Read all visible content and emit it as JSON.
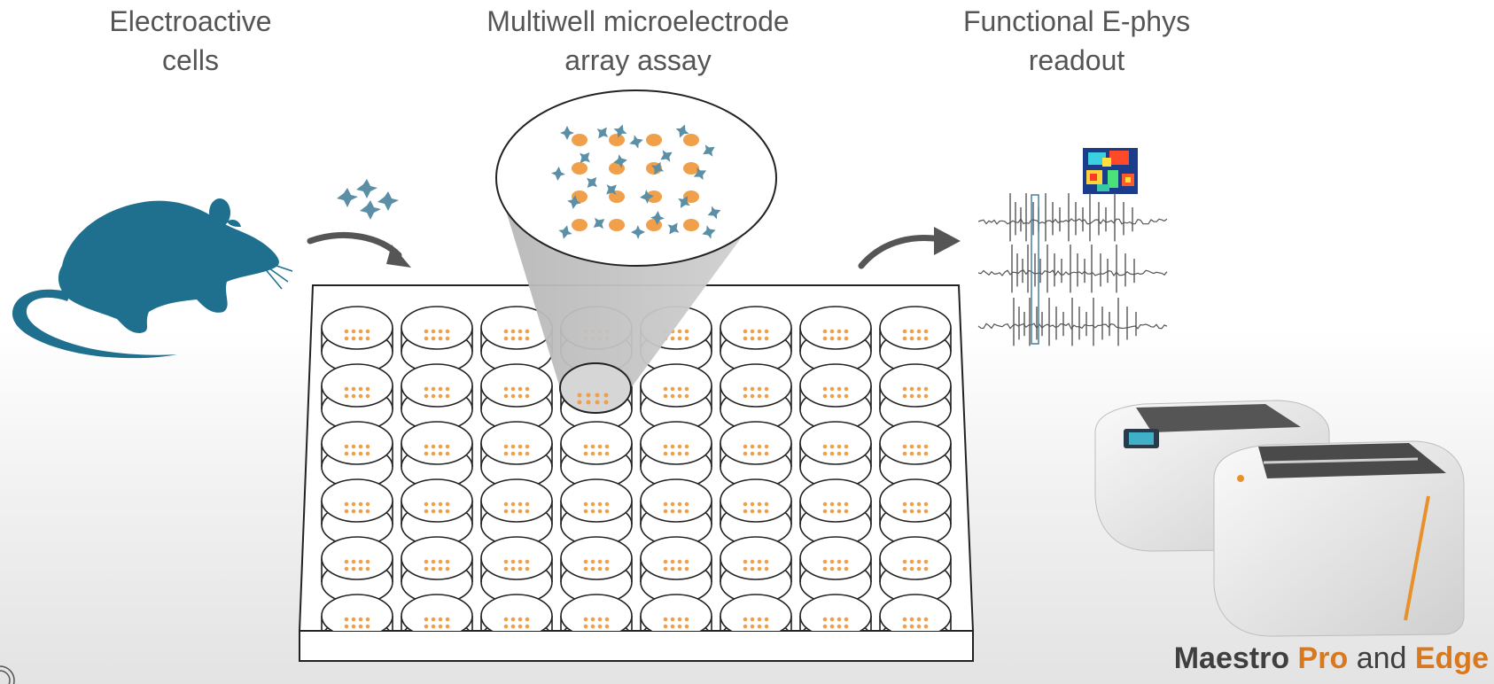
{
  "sections": {
    "cells_title": [
      "Electroactive",
      "cells"
    ],
    "assay_title": [
      "Multiwell microelectrode",
      "array assay"
    ],
    "readout_title": [
      "Functional E-phys",
      "readout"
    ]
  },
  "plate": {
    "rows": 6,
    "columns": 8,
    "highlighted_well": "row 2, column 4"
  },
  "brand": {
    "product": "Maestro",
    "model_a": "Pro",
    "conjunction": "and",
    "model_b": "Edge"
  },
  "colors": {
    "text": "#555555",
    "rat": "#1f6f8f",
    "electrode_dots": "#f0a04b",
    "cells": "#5a8fa6",
    "orange_accent": "#d9781c",
    "arrow": "#555555"
  },
  "icons": [
    "rat-silhouette-icon",
    "neuron-cells-icon",
    "curved-arrow-icon",
    "microelectrode-plate-icon",
    "heatmap-icon",
    "spike-trace-icon",
    "maestro-device-icon"
  ]
}
